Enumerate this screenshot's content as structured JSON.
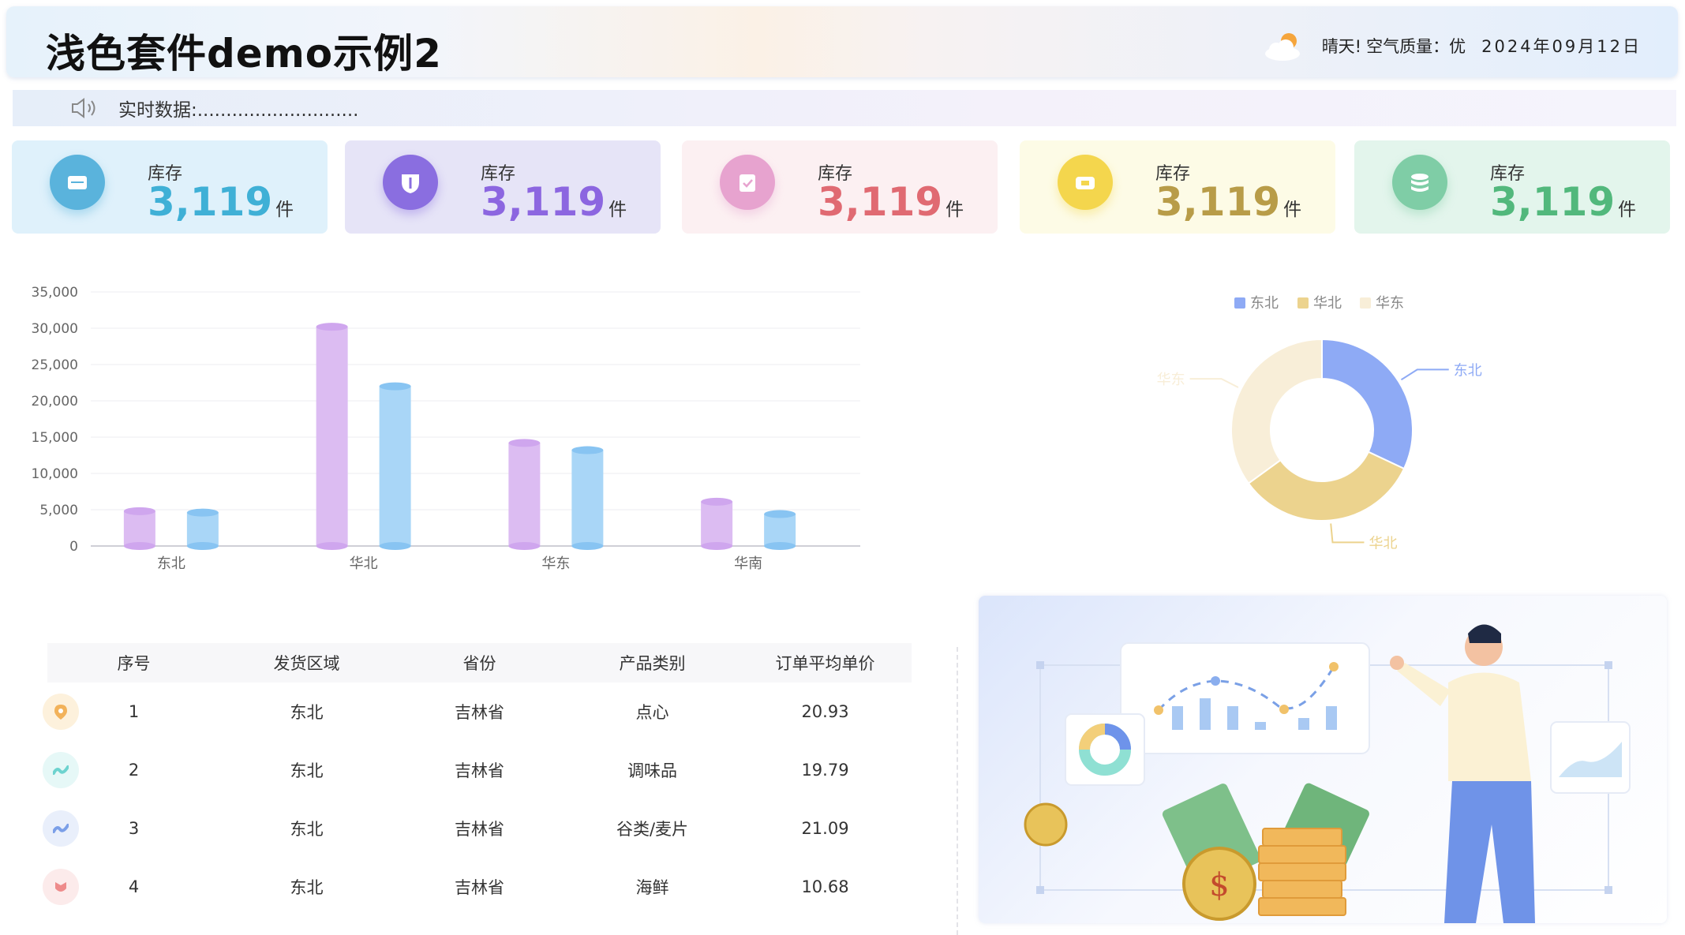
{
  "header": {
    "title": "浅色套件demo示例2",
    "weather": "晴天!",
    "air_quality": "空气质量：优",
    "date": "2024年09月12日"
  },
  "ticker": {
    "label": "实时数据:............................"
  },
  "kpis": [
    {
      "name": "库存",
      "value": "3,119",
      "unit": "件",
      "icon": "mail-icon",
      "color": "#3fb0d6",
      "bg": "#dff1fb",
      "icon_bg": "#5ab3dc"
    },
    {
      "name": "库存",
      "value": "3,119",
      "unit": "件",
      "icon": "shield-icon",
      "color": "#8c66e0",
      "bg": "#e6e4f7",
      "icon_bg": "#8a6ee0"
    },
    {
      "name": "库存",
      "value": "3,119",
      "unit": "件",
      "icon": "clipboard-icon",
      "color": "#e06a72",
      "bg": "#fcf0f2",
      "icon_bg": "#e7a3cf"
    },
    {
      "name": "库存",
      "value": "3,119",
      "unit": "件",
      "icon": "ticket-icon",
      "color": "#b89c48",
      "bg": "#fdfbe6",
      "icon_bg": "#f4d64d"
    },
    {
      "name": "库存",
      "value": "3,119",
      "unit": "件",
      "icon": "database-icon",
      "color": "#52b87c",
      "bg": "#e3f5ec",
      "icon_bg": "#7fcda6"
    }
  ],
  "chart_data": [
    {
      "type": "bar",
      "categories": [
        "东北",
        "华北",
        "华东",
        "华南"
      ],
      "series": [
        {
          "values": [
            4800,
            30200,
            14200,
            6100
          ],
          "color": "#dcbcf2"
        },
        {
          "values": [
            4600,
            22000,
            13200,
            4400
          ],
          "color": "#a9d6f7"
        }
      ],
      "ylim": [
        0,
        35000
      ],
      "yticks": [
        "0",
        "5,000",
        "10,000",
        "15,000",
        "20,000",
        "25,000",
        "30,000",
        "35,000"
      ],
      "grid": true
    },
    {
      "type": "pie",
      "style": "donut",
      "legend": [
        "东北",
        "华北",
        "华东"
      ],
      "legend_position": "top",
      "slices": [
        {
          "label": "东北",
          "value": 32,
          "color": "#8eaaf5"
        },
        {
          "label": "华北",
          "value": 33,
          "color": "#ecd38e"
        },
        {
          "label": "华东",
          "value": 35,
          "color": "#f8eed8"
        }
      ]
    }
  ],
  "table": {
    "headers": [
      "序号",
      "发货区域",
      "省份",
      "产品类别",
      "订单平均单价"
    ],
    "rows": [
      {
        "cells": [
          "1",
          "东北",
          "吉林省",
          "点心",
          "20.93"
        ],
        "icon": "location-pin-icon",
        "icon_bg": "#fdf1dc",
        "icon_color": "#f2b25a"
      },
      {
        "cells": [
          "2",
          "东北",
          "吉林省",
          "调味品",
          "19.79"
        ],
        "icon": "wave-icon",
        "icon_bg": "#e6f8f7",
        "icon_color": "#6dd3cf"
      },
      {
        "cells": [
          "3",
          "东北",
          "吉林省",
          "谷类/麦片",
          "21.09"
        ],
        "icon": "wave-icon",
        "icon_bg": "#e9effb",
        "icon_color": "#7b9fe8"
      },
      {
        "cells": [
          "4",
          "东北",
          "吉林省",
          "海鲜",
          "10.68"
        ],
        "icon": "tulip-icon",
        "icon_bg": "#fcebeb",
        "icon_color": "#ee8b8b"
      }
    ]
  }
}
